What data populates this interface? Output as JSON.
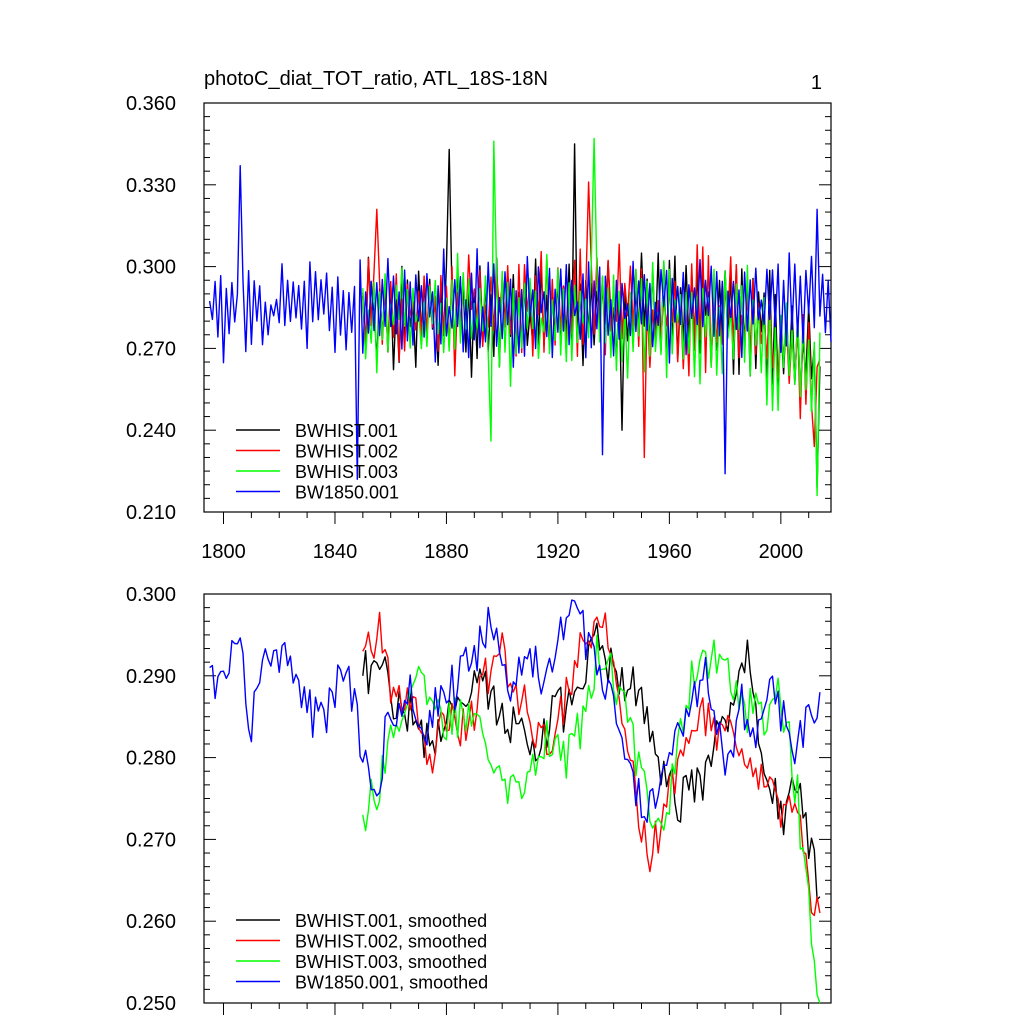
{
  "chart_data": [
    {
      "type": "line",
      "title": "photoC_diat_TOT_ratio, ATL_18S-18N",
      "panel_label": "1",
      "xlim": [
        1793,
        2018
      ],
      "ylim": [
        0.21,
        0.36
      ],
      "xticks": [
        1800,
        1840,
        1880,
        1920,
        1960,
        2000
      ],
      "yticks": [
        0.21,
        0.24,
        0.27,
        0.3,
        0.33,
        0.36
      ],
      "ytick_labels": [
        "0.210",
        "0.240",
        "0.270",
        "0.300",
        "0.330",
        "0.360"
      ],
      "legend_position": "bottom-left",
      "series": [
        {
          "name": "BWHIST.001",
          "color": "#000000",
          "x_start": 1850,
          "x_end": 2014,
          "mean": 0.284,
          "amp": 0.018,
          "trend_end": -0.02,
          "seed": 11,
          "extremes": [
            [
              1881,
              0.343
            ],
            [
              1926,
              0.345
            ],
            [
              1943,
              0.24
            ],
            [
              2013,
              0.219
            ]
          ]
        },
        {
          "name": "BWHIST.002",
          "color": "#ff0000",
          "x_start": 1850,
          "x_end": 2014,
          "mean": 0.284,
          "amp": 0.018,
          "trend_end": -0.022,
          "seed": 23,
          "extremes": [
            [
              1855,
              0.321
            ],
            [
              1931,
              0.331
            ],
            [
              1951,
              0.23
            ],
            [
              2012,
              0.234
            ]
          ]
        },
        {
          "name": "BWHIST.003",
          "color": "#00ff00",
          "x_start": 1850,
          "x_end": 2014,
          "mean": 0.281,
          "amp": 0.019,
          "trend_end": -0.02,
          "seed": 37,
          "extremes": [
            [
              1897,
              0.346
            ],
            [
              1933,
              0.347
            ],
            [
              1896,
              0.236
            ],
            [
              2013,
              0.216
            ]
          ]
        },
        {
          "name": "BW1850.001",
          "color": "#0000ff",
          "x_start": 1795,
          "x_end": 2018,
          "mean": 0.285,
          "amp": 0.016,
          "trend_end": 0.0,
          "seed": 53,
          "extremes": [
            [
              1806,
              0.337
            ],
            [
              1848,
              0.222
            ],
            [
              1936,
              0.231
            ],
            [
              1980,
              0.224
            ],
            [
              2013,
              0.321
            ]
          ]
        }
      ]
    },
    {
      "type": "line",
      "xlim": [
        1793,
        2018
      ],
      "ylim": [
        0.25,
        0.3
      ],
      "xticks": [
        1800,
        1840,
        1880,
        1920,
        1960,
        2000
      ],
      "yticks": [
        0.25,
        0.26,
        0.27,
        0.28,
        0.29,
        0.3
      ],
      "ytick_labels": [
        "0.250",
        "0.260",
        "0.270",
        "0.280",
        "0.290",
        "0.300"
      ],
      "legend_position": "bottom-left",
      "series": [
        {
          "name": "BWHIST.001, smoothed",
          "color": "#000000",
          "x": [
            1850,
            1856,
            1862,
            1868,
            1874,
            1880,
            1886,
            1892,
            1898,
            1904,
            1910,
            1916,
            1922,
            1928,
            1934,
            1940,
            1946,
            1952,
            1958,
            1964,
            1970,
            1976,
            1982,
            1988,
            1994,
            2000,
            2006,
            2010,
            2014
          ],
          "y": [
            0.29,
            0.291,
            0.287,
            0.285,
            0.281,
            0.286,
            0.288,
            0.291,
            0.286,
            0.284,
            0.281,
            0.284,
            0.286,
            0.287,
            0.295,
            0.29,
            0.289,
            0.286,
            0.277,
            0.275,
            0.276,
            0.281,
            0.287,
            0.292,
            0.281,
            0.272,
            0.276,
            0.27,
            0.263
          ]
        },
        {
          "name": "BWHIST.002, smoothed",
          "color": "#ff0000",
          "x": [
            1850,
            1856,
            1862,
            1868,
            1874,
            1880,
            1886,
            1892,
            1898,
            1904,
            1910,
            1916,
            1922,
            1928,
            1934,
            1940,
            1946,
            1952,
            1958,
            1964,
            1970,
            1976,
            1982,
            1988,
            1994,
            2000,
            2006,
            2010,
            2014
          ],
          "y": [
            0.293,
            0.296,
            0.286,
            0.288,
            0.28,
            0.285,
            0.284,
            0.287,
            0.294,
            0.289,
            0.285,
            0.281,
            0.287,
            0.293,
            0.298,
            0.292,
            0.279,
            0.268,
            0.273,
            0.279,
            0.286,
            0.284,
            0.282,
            0.279,
            0.276,
            0.274,
            0.272,
            0.265,
            0.261
          ]
        },
        {
          "name": "BWHIST.003, smoothed",
          "color": "#00ff00",
          "x": [
            1850,
            1856,
            1862,
            1868,
            1874,
            1880,
            1886,
            1892,
            1898,
            1904,
            1910,
            1916,
            1922,
            1928,
            1934,
            1940,
            1946,
            1952,
            1958,
            1964,
            1970,
            1976,
            1982,
            1988,
            1994,
            2000,
            2006,
            2010,
            2014
          ],
          "y": [
            0.273,
            0.277,
            0.285,
            0.289,
            0.287,
            0.284,
            0.286,
            0.285,
            0.28,
            0.276,
            0.279,
            0.283,
            0.279,
            0.284,
            0.292,
            0.29,
            0.283,
            0.276,
            0.271,
            0.284,
            0.292,
            0.293,
            0.289,
            0.286,
            0.285,
            0.288,
            0.275,
            0.262,
            0.25
          ]
        },
        {
          "name": "BW1850.001, smoothed",
          "color": "#0000ff",
          "x": [
            1795,
            1800,
            1805,
            1810,
            1815,
            1820,
            1825,
            1830,
            1835,
            1840,
            1845,
            1850,
            1855,
            1860,
            1866,
            1872,
            1878,
            1884,
            1890,
            1896,
            1902,
            1908,
            1914,
            1920,
            1926,
            1932,
            1938,
            1944,
            1950,
            1956,
            1962,
            1968,
            1974,
            1980,
            1986,
            1992,
            1998,
            2004,
            2010,
            2014
          ],
          "y": [
            0.291,
            0.289,
            0.294,
            0.284,
            0.292,
            0.293,
            0.291,
            0.286,
            0.284,
            0.289,
            0.291,
            0.279,
            0.276,
            0.286,
            0.288,
            0.283,
            0.287,
            0.289,
            0.293,
            0.296,
            0.287,
            0.293,
            0.29,
            0.295,
            0.297,
            0.294,
            0.289,
            0.282,
            0.274,
            0.276,
            0.282,
            0.288,
            0.29,
            0.279,
            0.286,
            0.283,
            0.289,
            0.28,
            0.284,
            0.288
          ]
        }
      ]
    }
  ]
}
